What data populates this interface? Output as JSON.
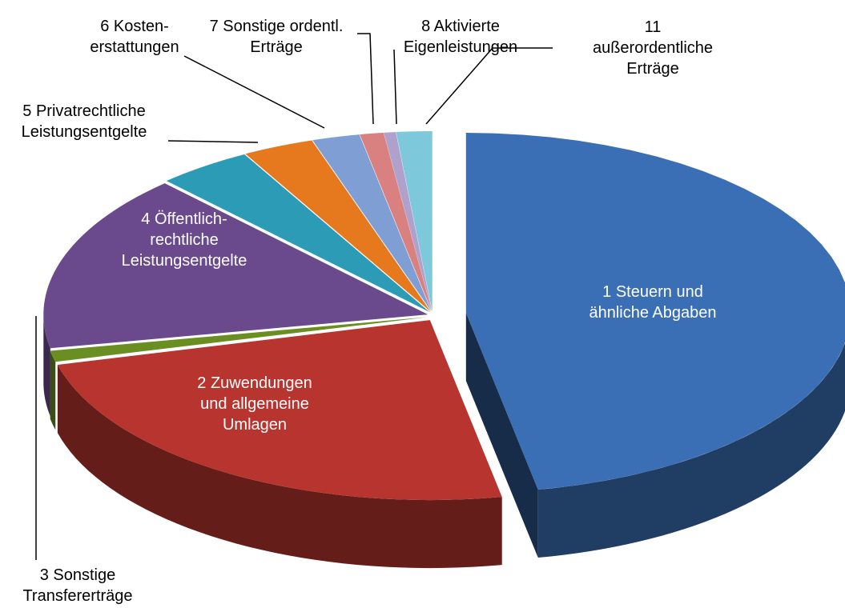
{
  "chart_data": {
    "type": "pie3d",
    "categories": [
      "1 Steuern und\nähnliche Abgaben",
      "2 Zuwendungen\nund allgemeine\nUmlagen",
      "3 Sonstige\nTransfererträge",
      "4 Öffentlich-\nrechtliche\nLeistungsentgelte",
      "5 Privatrechtliche\nLeistungsentgelte",
      "6 Kosten-\nerstattungen",
      "7 Sonstige ordentl.\nErträge",
      "8 Aktivierte\nEigenleistungen",
      null,
      "11\naußerordentliche\nErträge"
    ],
    "values": [
      47,
      24,
      1,
      16,
      4,
      3,
      2,
      1,
      0.5,
      1.5
    ],
    "colors": [
      "#3a6fb5",
      "#b8342f",
      "#6b8e23",
      "#6a4a8c",
      "#2c9bb5",
      "#e6781e",
      "#7f9fd4",
      "#d98080",
      "#b0a0cc",
      "#7ec8dc"
    ]
  }
}
